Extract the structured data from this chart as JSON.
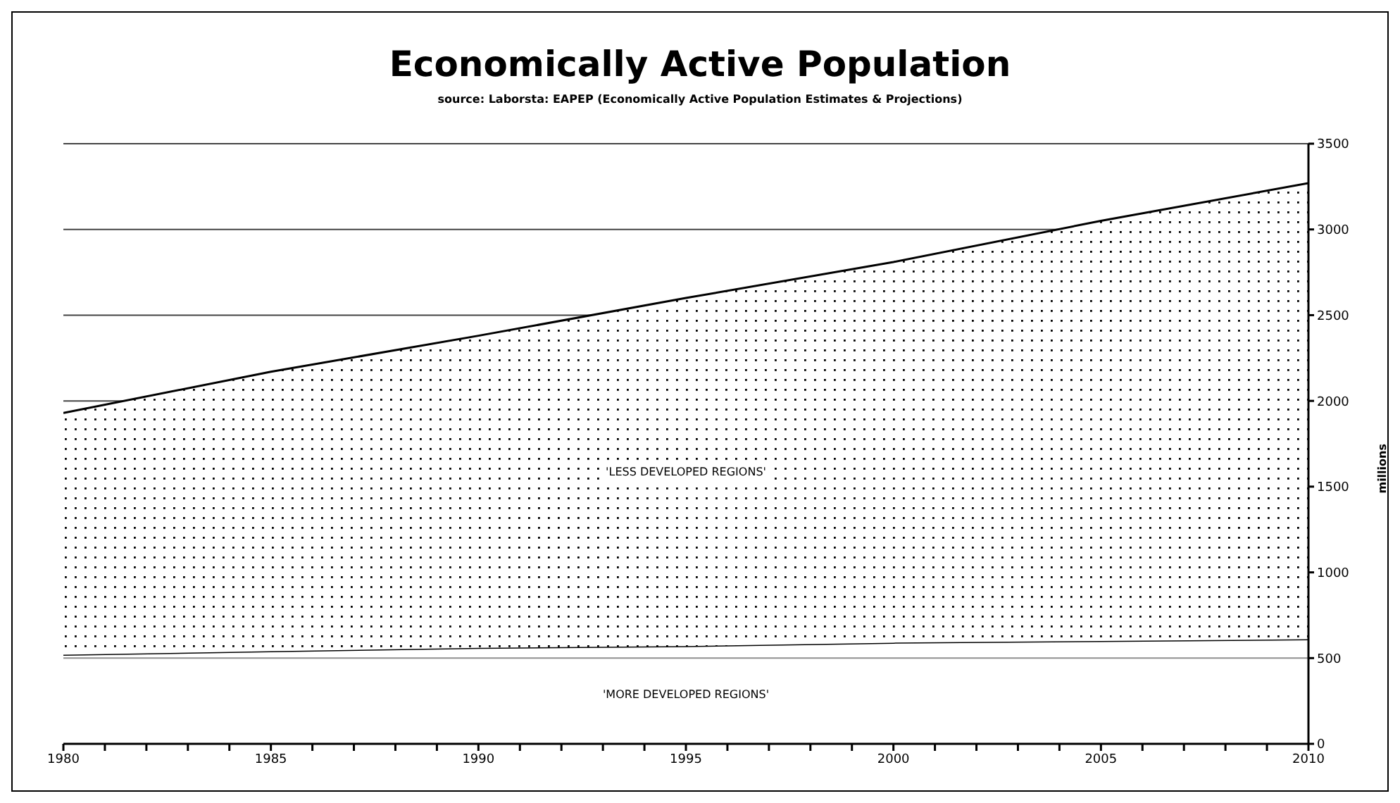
{
  "chart_data": {
    "type": "area",
    "title": "Economically Active Population",
    "subtitle": "source: Laborsta: EAPEP (Economically Active Population Estimates & Projections)",
    "ylabel": "millions",
    "stacked": true,
    "x": [
      1980,
      1985,
      1990,
      1995,
      2000,
      2005,
      2010
    ],
    "series": [
      {
        "name": "'MORE DEVELOPED REGIONS'",
        "color": "#000000",
        "values": [
          520,
          540,
          560,
          570,
          590,
          600,
          610
        ]
      },
      {
        "name": "'LESS DEVELOPED REGIONS'",
        "color": "#000000",
        "values": [
          1410,
          1630,
          1820,
          2030,
          2220,
          2450,
          2660
        ]
      }
    ],
    "xlim": [
      1980,
      2010
    ],
    "xticks": [
      1980,
      {
        "value": 1981,
        "label": null
      },
      {
        "value": 1982,
        "label": null
      },
      {
        "value": 1983,
        "label": null
      },
      {
        "value": 1984,
        "label": null
      },
      1985,
      {
        "value": 1986,
        "label": null
      },
      {
        "value": 1987,
        "label": null
      },
      {
        "value": 1988,
        "label": null
      },
      {
        "value": 1989,
        "label": null
      },
      1990,
      {
        "value": 1991,
        "label": null
      },
      {
        "value": 1992,
        "label": null
      },
      {
        "value": 1993,
        "label": null
      },
      {
        "value": 1994,
        "label": null
      },
      1995,
      {
        "value": 1996,
        "label": null
      },
      {
        "value": 1997,
        "label": null
      },
      {
        "value": 1998,
        "label": null
      },
      {
        "value": 1999,
        "label": null
      },
      2000,
      {
        "value": 2001,
        "label": null
      },
      {
        "value": 2002,
        "label": null
      },
      {
        "value": 2003,
        "label": null
      },
      {
        "value": 2004,
        "label": null
      },
      2005,
      {
        "value": 2006,
        "label": null
      },
      {
        "value": 2007,
        "label": null
      },
      {
        "value": 2008,
        "label": null
      },
      {
        "value": 2009,
        "label": null
      },
      2010
    ],
    "ylim": [
      0,
      3500
    ],
    "yticks": [
      0,
      500,
      1000,
      1500,
      2000,
      2500,
      3000,
      3500
    ],
    "grid": "y",
    "legend": false
  }
}
